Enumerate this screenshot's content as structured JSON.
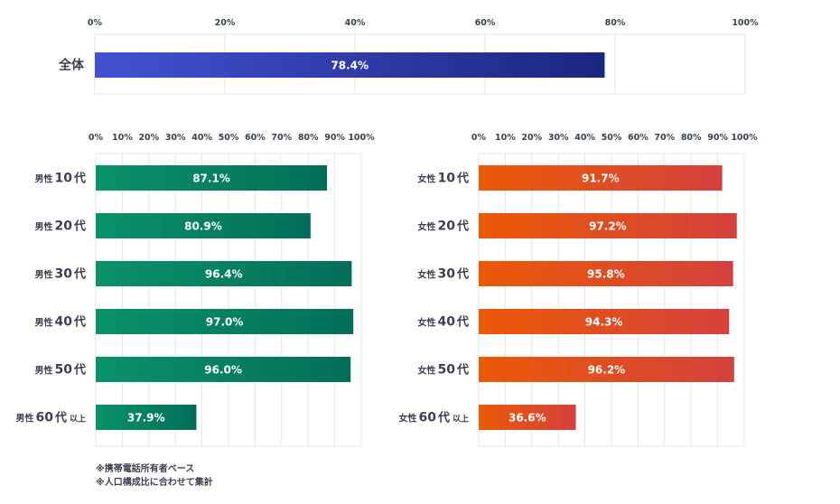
{
  "chart_data": [
    {
      "type": "bar",
      "orientation": "horizontal",
      "categories": [
        "全体"
      ],
      "values": [
        78.4
      ],
      "value_labels": [
        "78.4%"
      ],
      "xlim": [
        0,
        100
      ],
      "ticks": [
        0,
        20,
        40,
        60,
        80,
        100
      ],
      "tick_labels": [
        "0%",
        "20%",
        "40%",
        "60%",
        "80%",
        "100%"
      ],
      "grid": true,
      "color_from": "#4352d3",
      "color_to": "#1b2680"
    },
    {
      "type": "bar",
      "orientation": "horizontal",
      "categories": [
        {
          "main": "男性",
          "num": "10",
          "unit": "代",
          "suffix": ""
        },
        {
          "main": "男性",
          "num": "20",
          "unit": "代",
          "suffix": ""
        },
        {
          "main": "男性",
          "num": "30",
          "unit": "代",
          "suffix": ""
        },
        {
          "main": "男性",
          "num": "40",
          "unit": "代",
          "suffix": ""
        },
        {
          "main": "男性",
          "num": "50",
          "unit": "代",
          "suffix": ""
        },
        {
          "main": "男性",
          "num": "60",
          "unit": "代",
          "suffix": "以上"
        }
      ],
      "values": [
        87.1,
        80.9,
        96.4,
        97.0,
        96.0,
        37.9
      ],
      "value_labels": [
        "87.1%",
        "80.9%",
        "96.4%",
        "97.0%",
        "96.0%",
        "37.9%"
      ],
      "xlim": [
        0,
        100
      ],
      "ticks": [
        0,
        10,
        20,
        30,
        40,
        50,
        60,
        70,
        80,
        90,
        100
      ],
      "tick_labels": [
        "0%",
        "10%",
        "20%",
        "30%",
        "40%",
        "50%",
        "60%",
        "70%",
        "80%",
        "90%",
        "100%"
      ],
      "grid": true,
      "color_from": "#0a9269",
      "color_to": "#036e59"
    },
    {
      "type": "bar",
      "orientation": "horizontal",
      "categories": [
        {
          "main": "女性",
          "num": "10",
          "unit": "代",
          "suffix": ""
        },
        {
          "main": "女性",
          "num": "20",
          "unit": "代",
          "suffix": ""
        },
        {
          "main": "女性",
          "num": "30",
          "unit": "代",
          "suffix": ""
        },
        {
          "main": "女性",
          "num": "40",
          "unit": "代",
          "suffix": ""
        },
        {
          "main": "女性",
          "num": "50",
          "unit": "代",
          "suffix": ""
        },
        {
          "main": "女性",
          "num": "60",
          "unit": "代",
          "suffix": "以上"
        }
      ],
      "values": [
        91.7,
        97.2,
        95.8,
        94.3,
        96.2,
        36.6
      ],
      "value_labels": [
        "91.7%",
        "97.2%",
        "95.8%",
        "94.3%",
        "96.2%",
        "36.6%"
      ],
      "xlim": [
        0,
        100
      ],
      "ticks": [
        0,
        10,
        20,
        30,
        40,
        50,
        60,
        70,
        80,
        90,
        100
      ],
      "tick_labels": [
        "0%",
        "10%",
        "20%",
        "30%",
        "40%",
        "50%",
        "60%",
        "70%",
        "80%",
        "90%",
        "100%"
      ],
      "grid": true,
      "color_from": "#ea5a06",
      "color_to": "#d4413e"
    }
  ],
  "notes": [
    "※携帯電話所有者ベース",
    "※人口構成比に合わせて集計"
  ]
}
